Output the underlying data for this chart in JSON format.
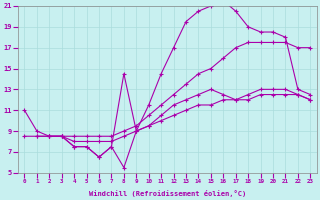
{
  "xlabel": "Windchill (Refroidissement éolien,°C)",
  "xlim": [
    -0.5,
    23.5
  ],
  "ylim": [
    5,
    21
  ],
  "yticks": [
    5,
    7,
    9,
    11,
    13,
    15,
    17,
    19,
    21
  ],
  "xticks": [
    0,
    1,
    2,
    3,
    4,
    5,
    6,
    7,
    8,
    9,
    10,
    11,
    12,
    13,
    14,
    15,
    16,
    17,
    18,
    19,
    20,
    21,
    22,
    23
  ],
  "bg_color": "#c8f0f0",
  "line_color": "#aa00aa",
  "grid_color": "#aadddd",
  "series": [
    {
      "x": [
        2,
        3,
        4,
        5,
        6,
        7,
        8,
        9,
        10,
        11,
        12,
        13,
        14,
        15,
        16,
        17,
        18,
        19,
        20,
        21,
        22,
        23
      ],
      "y": [
        8.5,
        8.5,
        7.5,
        7.5,
        6.5,
        7.5,
        5.5,
        9.0,
        11.5,
        14.5,
        17.0,
        19.5,
        20.5,
        21.0,
        21.5,
        20.5,
        19.0,
        18.5,
        18.5,
        18.0,
        13.0,
        12.5
      ]
    },
    {
      "x": [
        0,
        1,
        2,
        3,
        4,
        5,
        6,
        7,
        8,
        9,
        10,
        11,
        12,
        13,
        14,
        15,
        16,
        17,
        18,
        19,
        20,
        21,
        22,
        23
      ],
      "y": [
        8.5,
        8.5,
        8.5,
        8.5,
        8.5,
        8.5,
        8.5,
        8.5,
        9.0,
        9.5,
        10.5,
        11.5,
        12.5,
        13.5,
        14.5,
        15.0,
        16.0,
        17.0,
        17.5,
        17.5,
        17.5,
        17.5,
        17.0,
        17.0
      ]
    },
    {
      "x": [
        0,
        1,
        2,
        3,
        4,
        5,
        6,
        7,
        8,
        9,
        10,
        11,
        12,
        13,
        14,
        15,
        16,
        17,
        18,
        19,
        20,
        21,
        22,
        23
      ],
      "y": [
        11.0,
        9.0,
        8.5,
        8.5,
        7.5,
        7.5,
        6.5,
        7.5,
        14.5,
        9.0,
        9.5,
        10.5,
        11.5,
        12.0,
        12.5,
        13.0,
        12.5,
        12.0,
        12.5,
        13.0,
        13.0,
        13.0,
        12.5,
        12.0
      ]
    },
    {
      "x": [
        1,
        2,
        3,
        4,
        5,
        6,
        7,
        8,
        9,
        10,
        11,
        12,
        13,
        14,
        15,
        16,
        17,
        18,
        19,
        20,
        21,
        22,
        23
      ],
      "y": [
        8.5,
        8.5,
        8.5,
        8.0,
        8.0,
        8.0,
        8.0,
        8.5,
        9.0,
        9.5,
        10.0,
        10.5,
        11.0,
        11.5,
        11.5,
        12.0,
        12.0,
        12.0,
        12.5,
        12.5,
        12.5,
        12.5,
        12.0
      ]
    }
  ]
}
